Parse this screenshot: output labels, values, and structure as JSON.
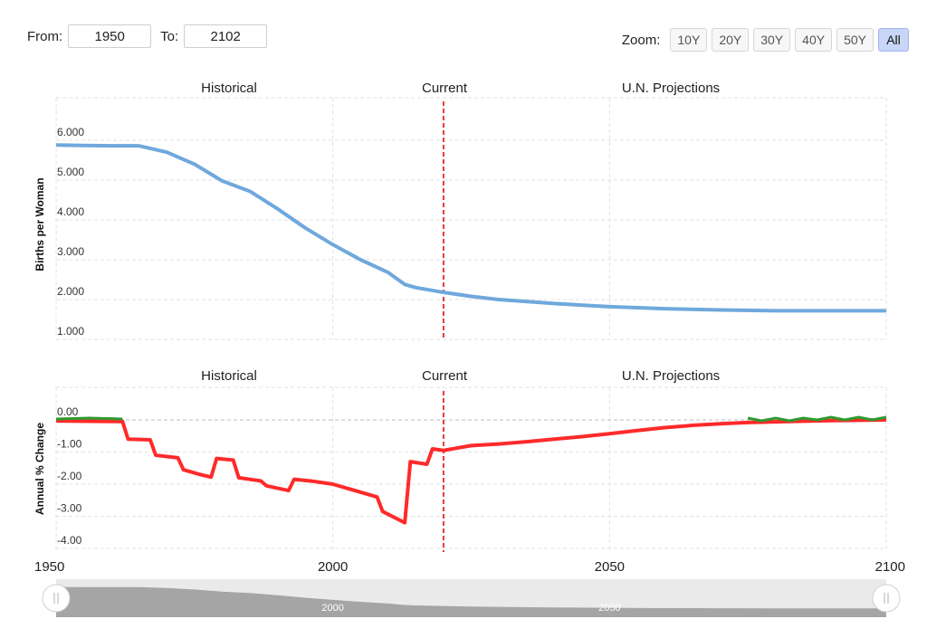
{
  "range": {
    "from_label": "From:",
    "from_value": "1950",
    "to_label": "To:",
    "to_value": "2102"
  },
  "zoom": {
    "label": "Zoom:",
    "buttons": [
      "10Y",
      "20Y",
      "30Y",
      "40Y",
      "50Y",
      "All"
    ],
    "active": "All"
  },
  "colors": {
    "fertility_line": "#6fa8dc",
    "decline": "#ff2a2a",
    "increase": "#2e9a2e",
    "current_marker": "#e53935",
    "navigator_fill": "#888888"
  },
  "chart_data": [
    {
      "type": "line",
      "section_labels": [
        "Historical",
        "Current",
        "U.N. Projections"
      ],
      "ylabel": "Births per Woman",
      "ylim": [
        1.0,
        6.0
      ],
      "yticks": [
        "1.000",
        "2.000",
        "3.000",
        "4.000",
        "5.000",
        "6.000"
      ],
      "current_year": 2020,
      "grid": true,
      "x": [
        1950,
        1955,
        1960,
        1965,
        1970,
        1975,
        1980,
        1985,
        1990,
        1995,
        2000,
        2005,
        2010,
        2013,
        2015,
        2020,
        2025,
        2030,
        2040,
        2050,
        2060,
        2070,
        2080,
        2090,
        2100
      ],
      "series": [
        {
          "values": [
            5.88,
            5.87,
            5.86,
            5.86,
            5.7,
            5.4,
            4.98,
            4.72,
            4.28,
            3.8,
            3.38,
            3.0,
            2.68,
            2.38,
            2.3,
            2.18,
            2.08,
            2.0,
            1.9,
            1.82,
            1.77,
            1.74,
            1.72,
            1.72,
            1.72
          ]
        }
      ]
    },
    {
      "type": "line",
      "section_labels": [
        "Historical",
        "Current",
        "U.N. Projections"
      ],
      "ylabel": "Annual % Change",
      "ylim": [
        -4.0,
        0.0
      ],
      "yticks": [
        "-4.00",
        "-3.00",
        "-2.00",
        "-1.00",
        "0.00"
      ],
      "current_year": 2020,
      "grid": true,
      "x": [
        1950,
        1962,
        1963,
        1967,
        1968,
        1972,
        1973,
        1976,
        1978,
        1979,
        1982,
        1983,
        1987,
        1988,
        1992,
        1993,
        1996,
        2000,
        2004,
        2008,
        2009,
        2013,
        2014,
        2017,
        2018,
        2020,
        2025,
        2030,
        2035,
        2040,
        2045,
        2050,
        2055,
        2060,
        2065,
        2070,
        2075,
        2080,
        2085,
        2090,
        2095,
        2100
      ],
      "series": [
        {
          "values": [
            -0.03,
            -0.05,
            -0.6,
            -0.62,
            -1.1,
            -1.18,
            -1.55,
            -1.7,
            -1.78,
            -1.2,
            -1.25,
            -1.8,
            -1.9,
            -2.05,
            -2.2,
            -1.85,
            -1.9,
            -2.0,
            -2.2,
            -2.4,
            -2.85,
            -3.2,
            -1.3,
            -1.38,
            -0.9,
            -0.95,
            -0.8,
            -0.75,
            -0.68,
            -0.6,
            -0.52,
            -0.43,
            -0.33,
            -0.24,
            -0.17,
            -0.12,
            -0.08,
            -0.06,
            -0.04,
            -0.02,
            -0.01,
            0.0
          ]
        }
      ]
    }
  ],
  "x_axis": {
    "ticks": [
      "1950",
      "2000",
      "2050",
      "2100"
    ],
    "range": [
      1950,
      2100
    ]
  },
  "navigator": {
    "ticks": [
      "2000",
      "2050"
    ]
  }
}
